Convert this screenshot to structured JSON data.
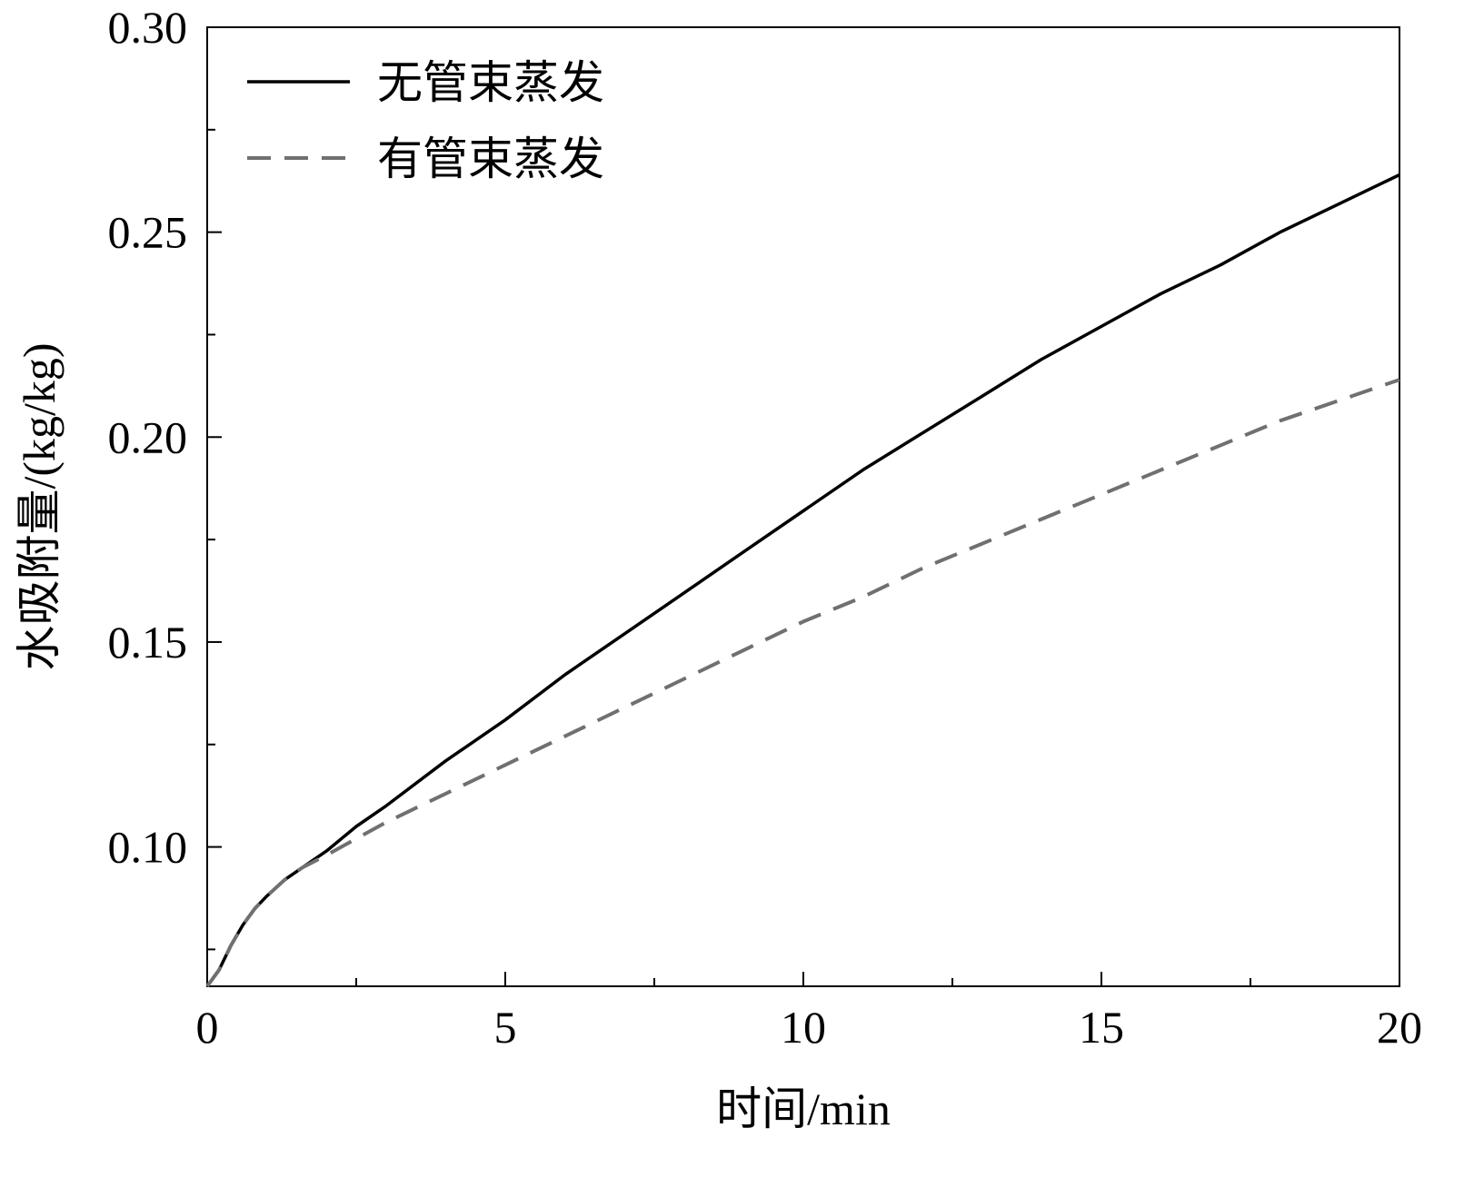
{
  "chart_data": {
    "type": "line",
    "title": "",
    "xlabel": "时间/min",
    "ylabel": "水吸附量/(kg/kg)",
    "xlim": [
      0,
      20
    ],
    "ylim": [
      0.066,
      0.3
    ],
    "xticks": [
      0,
      5,
      10,
      15,
      20
    ],
    "xtick_labels": [
      "0",
      "5",
      "10",
      "15",
      "20"
    ],
    "xminor_ticks": [
      2.5,
      7.5,
      12.5,
      17.5
    ],
    "yticks": [
      0.1,
      0.15,
      0.2,
      0.25,
      0.3
    ],
    "ytick_labels": [
      "0.10",
      "0.15",
      "0.20",
      "0.25",
      "0.30"
    ],
    "yminor_ticks": [
      0.075,
      0.125,
      0.175,
      0.225,
      0.275
    ],
    "grid": false,
    "legend_position": "top-left",
    "series": [
      {
        "name": "无管束蒸发",
        "style": "solid",
        "color": "#000000",
        "x": [
          0,
          0.2,
          0.4,
          0.6,
          0.8,
          1.0,
          1.3,
          1.6,
          2.0,
          2.5,
          3.0,
          4.0,
          5.0,
          6.0,
          7.0,
          8.0,
          9.0,
          10.0,
          11.0,
          12.0,
          13.0,
          14.0,
          15.0,
          16.0,
          17.0,
          18.0,
          19.0,
          20.0
        ],
        "y": [
          0.066,
          0.07,
          0.076,
          0.081,
          0.085,
          0.088,
          0.092,
          0.095,
          0.099,
          0.105,
          0.11,
          0.121,
          0.131,
          0.142,
          0.152,
          0.162,
          0.172,
          0.182,
          0.192,
          0.201,
          0.21,
          0.219,
          0.227,
          0.235,
          0.242,
          0.25,
          0.257,
          0.264
        ]
      },
      {
        "name": "有管束蒸发",
        "style": "dashed",
        "color": "#707070",
        "x": [
          0,
          0.2,
          0.4,
          0.6,
          0.8,
          1.0,
          1.3,
          1.6,
          2.0,
          2.5,
          3.0,
          4.0,
          5.0,
          6.0,
          7.0,
          8.0,
          9.0,
          10.0,
          11.0,
          12.0,
          13.0,
          14.0,
          15.0,
          16.0,
          17.0,
          18.0,
          19.0,
          20.0
        ],
        "y": [
          0.066,
          0.07,
          0.076,
          0.081,
          0.085,
          0.088,
          0.092,
          0.095,
          0.098,
          0.102,
          0.106,
          0.113,
          0.12,
          0.127,
          0.134,
          0.141,
          0.148,
          0.155,
          0.161,
          0.168,
          0.174,
          0.18,
          0.186,
          0.192,
          0.198,
          0.204,
          0.209,
          0.214
        ]
      }
    ]
  }
}
